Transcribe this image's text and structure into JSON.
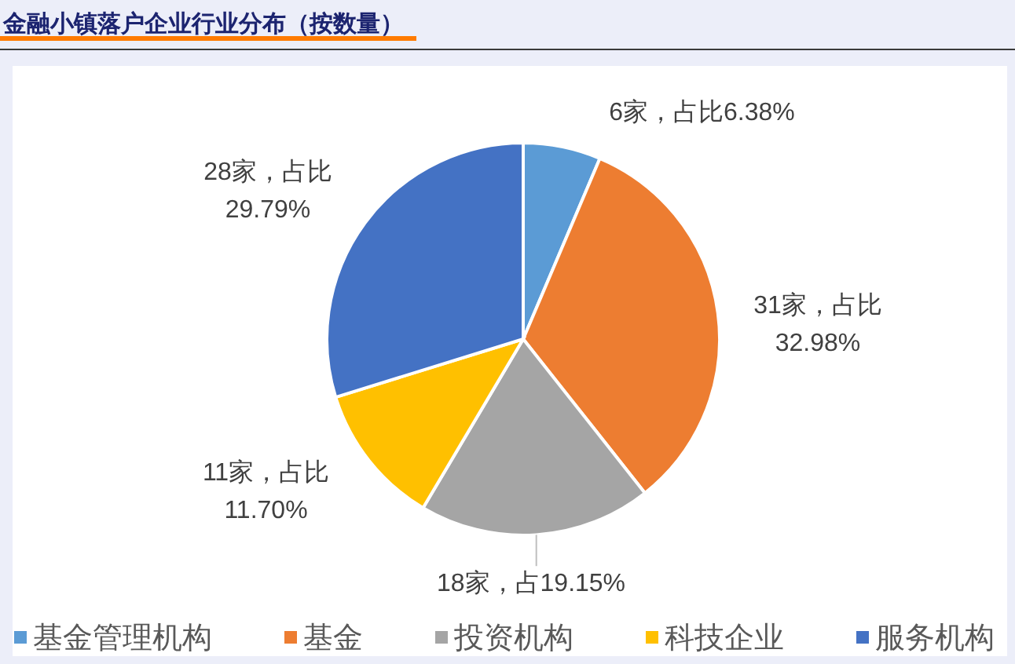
{
  "chart_data": {
    "type": "pie",
    "title": "金融小镇落户企业行业分布（按数量）",
    "categories": [
      "基金管理机构",
      "基金",
      "投资机构",
      "科技企业",
      "服务机构"
    ],
    "values": [
      6,
      31,
      18,
      11,
      28
    ],
    "colors": [
      "#5b9bd5",
      "#ed7d31",
      "#a5a5a5",
      "#ffc000",
      "#4472c4"
    ],
    "value_labels": [
      "6家，占比6.38%",
      "31家，占比\n32.98%",
      "18家，占19.15%",
      "11家，占比\n11.70%",
      "28家，占比\n29.79%"
    ],
    "legend": "bottom"
  }
}
